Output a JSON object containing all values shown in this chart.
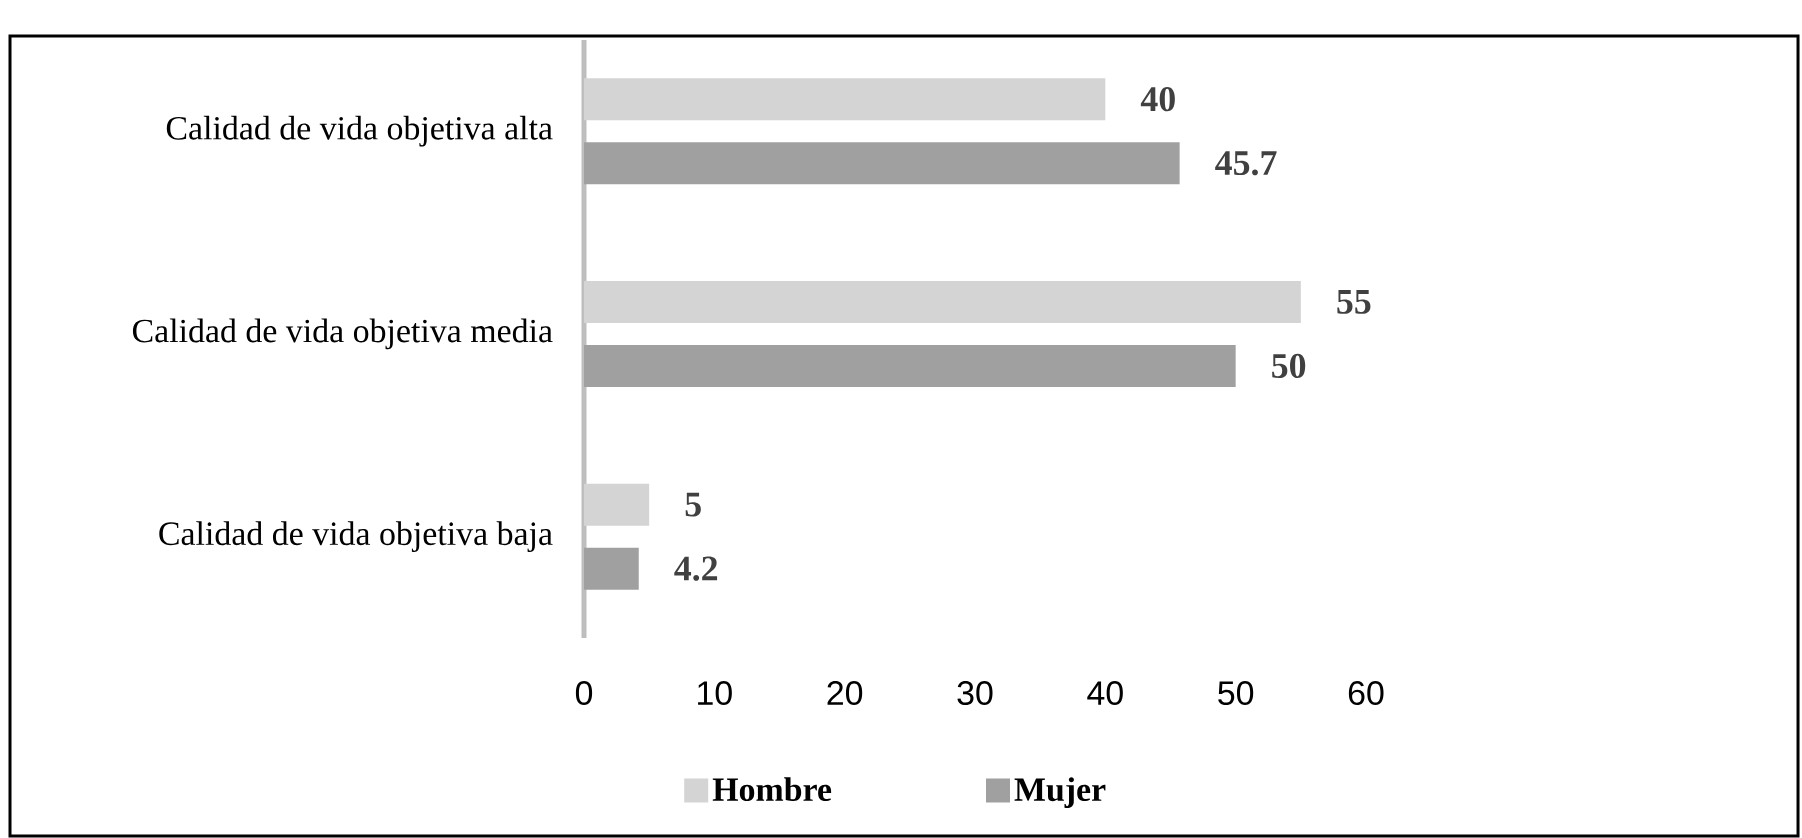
{
  "chart_data": {
    "type": "bar",
    "orientation": "horizontal",
    "categories": [
      "Calidad de vida objetiva alta",
      "Calidad de vida objetiva media",
      "Calidad de vida objetiva baja"
    ],
    "series": [
      {
        "name": "Hombre",
        "color": "#d4d4d4",
        "values": [
          40,
          55,
          5
        ]
      },
      {
        "name": "Mujer",
        "color": "#a0a0a0",
        "values": [
          45.7,
          50,
          4.2
        ]
      }
    ],
    "xlim": [
      0,
      60
    ],
    "xticks": [
      0,
      10,
      20,
      30,
      40,
      50,
      60
    ],
    "data_labels": true,
    "grid": false,
    "legend": "bottom"
  }
}
